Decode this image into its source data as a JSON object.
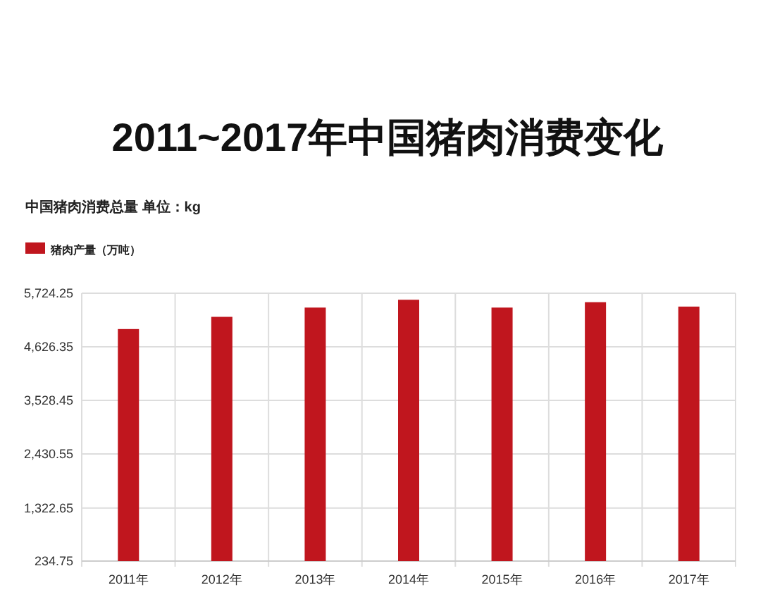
{
  "chart_data": {
    "type": "bar",
    "title": "2011~2017年中国猪肉消费变化",
    "subtitle": "中国猪肉消费总量 单位：kg",
    "categories": [
      "2011年",
      "2012年",
      "2013年",
      "2014年",
      "2015年",
      "2016年",
      "2017年"
    ],
    "series": [
      {
        "name": "猪肉产量（万吨）",
        "color": "#c0161e",
        "values": [
          4990,
          5240,
          5430,
          5590,
          5430,
          5540,
          5450
        ]
      }
    ],
    "ylim": [
      234.75,
      5724.25
    ],
    "yticks": [
      {
        "value": 234.75,
        "label": "234.75"
      },
      {
        "value": 1322.65,
        "label": "1,322.65"
      },
      {
        "value": 2430.55,
        "label": "2,430.55"
      },
      {
        "value": 3528.45,
        "label": "3,528.45"
      },
      {
        "value": 4626.35,
        "label": "4,626.35"
      },
      {
        "value": 5724.25,
        "label": "5,724.25"
      }
    ],
    "grid": true,
    "legend": "top left"
  }
}
